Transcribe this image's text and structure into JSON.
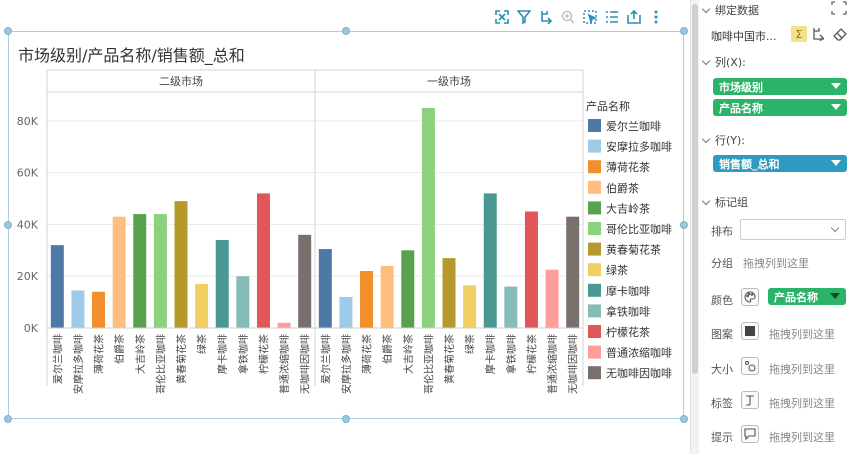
{
  "toolbar": {
    "icons": [
      "fullscreen-icon",
      "filter-icon",
      "drill-icon",
      "zoom-icon",
      "select-icon",
      "list-icon",
      "export-icon",
      "more-icon"
    ]
  },
  "chart": {
    "title": "市场级别/产品名称/销售额_总和"
  },
  "chart_data": {
    "type": "bar",
    "facets": [
      "二级市场",
      "一级市场"
    ],
    "categories": [
      "爱尔兰咖啡",
      "安摩拉多咖啡",
      "薄荷花茶",
      "伯爵茶",
      "大吉岭茶",
      "哥伦比亚咖啡",
      "黄春菊花茶",
      "绿茶",
      "摩卡咖啡",
      "拿铁咖啡",
      "柠檬花茶",
      "普通浓缩咖啡",
      "无咖啡因咖啡"
    ],
    "values": {
      "二级市场": [
        32000,
        14500,
        14000,
        43000,
        44000,
        44000,
        49000,
        17000,
        34000,
        20000,
        52000,
        2000,
        36000
      ],
      "一级市场": [
        30500,
        12000,
        22000,
        24000,
        30000,
        85000,
        27000,
        16500,
        52000,
        16000,
        45000,
        22500,
        43000
      ]
    },
    "colors": [
      "#4e79a7",
      "#a0cbe8",
      "#f28e2b",
      "#ffbe7d",
      "#59a14f",
      "#8cd17d",
      "#b6992d",
      "#f1ce63",
      "#499894",
      "#86bcb6",
      "#e15759",
      "#ff9d9a",
      "#79706e"
    ],
    "yticks": [
      "0K",
      "20K",
      "40K",
      "60K",
      "80K"
    ],
    "ylim": [
      0,
      90000
    ],
    "grid": true,
    "legend_position": "right",
    "legend_title": "产品名称"
  },
  "panel": {
    "header": "绑定数据",
    "dataset": "咖啡中国市...",
    "columns_label": "列(X):",
    "columns": [
      "市场级别",
      "产品名称"
    ],
    "rows_label": "行(Y):",
    "rows": [
      "销售额_总和"
    ],
    "marks_label": "标记组",
    "layout_label": "排布",
    "group_label": "分组",
    "drop_hint": "拖拽列到这里",
    "color_label": "颜色",
    "color_field": "产品名称",
    "pattern_label": "图案",
    "size_label": "大小",
    "tag_label": "标签",
    "tooltip_label": "提示"
  }
}
